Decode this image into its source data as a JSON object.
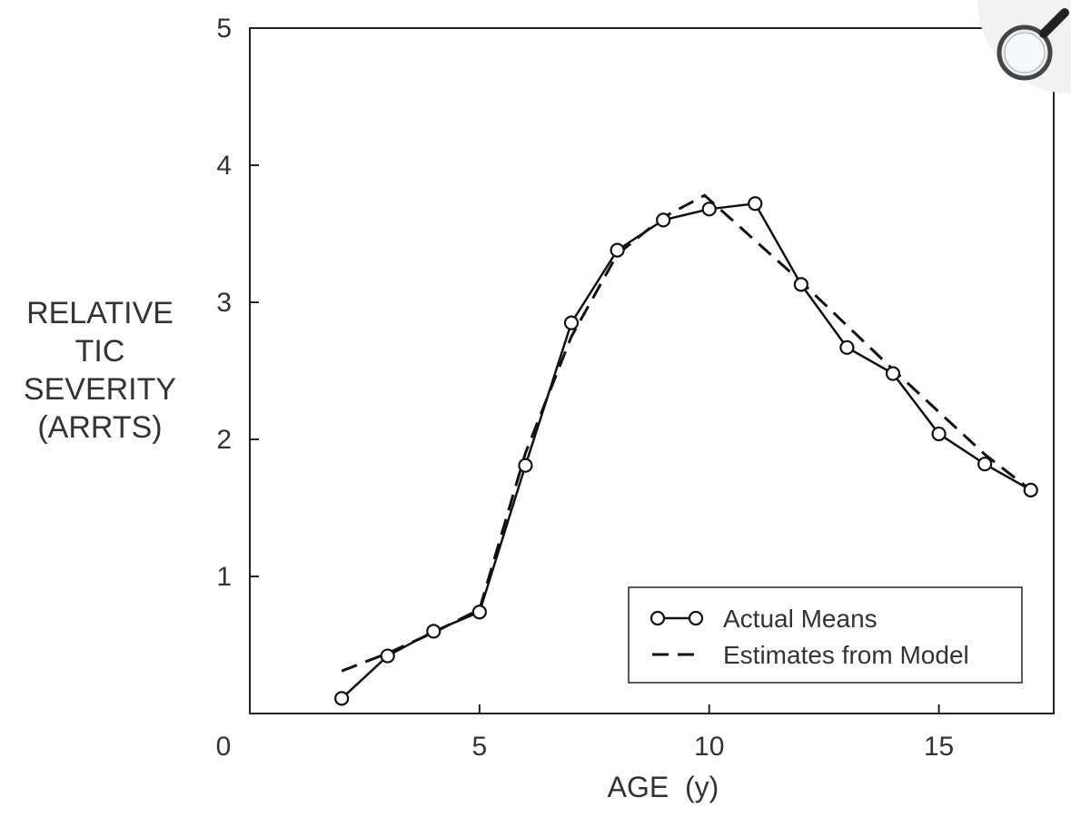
{
  "zoom": {
    "icon": "magnifier-icon"
  },
  "chart_data": {
    "type": "line",
    "title": "",
    "xlabel": "AGE  (y)",
    "ylabel_lines": [
      "RELATIVE",
      "TIC",
      "SEVERITY",
      "(ARRTS)"
    ],
    "xlim": [
      0,
      17.5
    ],
    "ylim": [
      0,
      5
    ],
    "xticks": [
      0,
      5,
      10,
      15
    ],
    "yticks": [
      1,
      2,
      3,
      4,
      5
    ],
    "grid": false,
    "legend_position": "bottom-right",
    "series": [
      {
        "name": "Actual Means",
        "style": "solid-line-open-circles",
        "color": "#111111",
        "x": [
          2,
          3,
          4,
          5,
          6,
          7,
          8,
          9,
          10,
          11,
          12,
          13,
          14,
          15,
          16,
          17
        ],
        "y": [
          0.11,
          0.42,
          0.6,
          0.74,
          1.81,
          2.85,
          3.38,
          3.6,
          3.68,
          3.72,
          3.13,
          2.67,
          2.48,
          2.04,
          1.82,
          1.63
        ]
      },
      {
        "name": "Estimates from Model",
        "style": "dashed-line",
        "color": "#111111",
        "x": [
          2,
          3,
          4,
          5,
          6,
          7,
          8,
          9,
          9.9,
          11,
          12,
          13,
          14,
          15,
          16,
          17
        ],
        "y": [
          0.31,
          0.44,
          0.59,
          0.76,
          1.9,
          2.75,
          3.35,
          3.62,
          3.78,
          3.45,
          3.15,
          2.83,
          2.51,
          2.2,
          1.89,
          1.63
        ]
      }
    ]
  }
}
